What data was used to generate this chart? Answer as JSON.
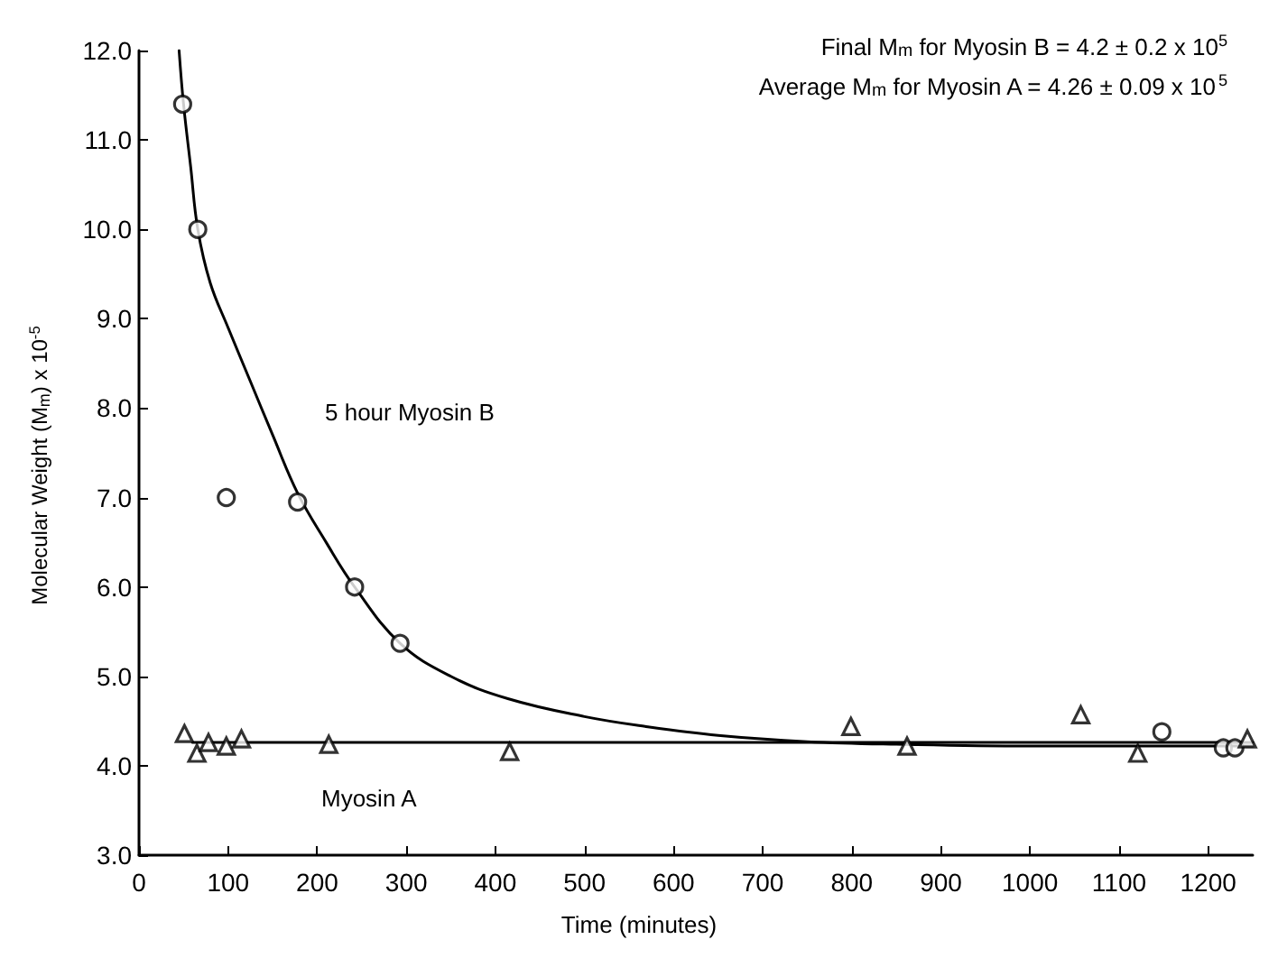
{
  "chart_data": {
    "type": "scatter",
    "xlabel": "Time (minutes)",
    "ylabel": "Molecular Weight (M$_{m}$) x 10$^{-5}$",
    "xlim": [
      0,
      1250
    ],
    "ylim": [
      3,
      12
    ],
    "xticks": [
      0,
      100,
      200,
      300,
      400,
      500,
      600,
      700,
      800,
      900,
      1000,
      1100,
      1200
    ],
    "yticks": [
      {
        "value": 3,
        "label": "3.0"
      },
      {
        "value": 4,
        "label": "4.0"
      },
      {
        "value": 5,
        "label": "5.0"
      },
      {
        "value": 6,
        "label": "6.0"
      },
      {
        "value": 7,
        "label": "7.0"
      },
      {
        "value": 8,
        "label": "8.0"
      },
      {
        "value": 9,
        "label": "9.0"
      },
      {
        "value": 10,
        "label": "10.0"
      },
      {
        "value": 11,
        "label": "11.0"
      },
      {
        "value": 12,
        "label": "12.0"
      }
    ],
    "grid": false,
    "series": [
      {
        "marker": "circle",
        "color": "#000000",
        "x": [
          49,
          66,
          98,
          178,
          242,
          293,
          1148,
          1217,
          1230
        ],
        "values": [
          11.4,
          10.0,
          7.0,
          6.95,
          6.0,
          5.37,
          4.38,
          4.2,
          4.2
        ]
      },
      {
        "marker": "triangle",
        "color": "#000000",
        "x": [
          51,
          65,
          78,
          98,
          115,
          213,
          416,
          799,
          862,
          1057,
          1121,
          1244
        ],
        "values": [
          4.36,
          4.14,
          4.26,
          4.22,
          4.3,
          4.24,
          4.16,
          4.44,
          4.22,
          4.57,
          4.14,
          4.3
        ]
      },
      {
        "type": "line",
        "marker": "none",
        "line_style": "solid",
        "color": "#000000",
        "x": [
          45,
          50,
          58,
          66,
          80,
          100,
          125,
          150,
          178,
          210,
          242,
          293,
          350,
          414,
          500,
          568,
          650,
          750,
          850,
          1000,
          1250
        ],
        "values": [
          12.0,
          11.4,
          10.7,
          10.0,
          9.4,
          8.9,
          8.3,
          7.7,
          7.05,
          6.5,
          6.0,
          5.37,
          5.0,
          4.75,
          4.55,
          4.44,
          4.34,
          4.27,
          4.24,
          4.22,
          4.22
        ]
      },
      {
        "type": "line",
        "marker": "none",
        "line_style": "solid",
        "color": "#000000",
        "x": [
          60,
          1250
        ],
        "values": [
          4.26,
          4.26
        ]
      }
    ],
    "annotations": [
      "5 hour Myosin B",
      "Myosin A",
      "Final M$_{m}$ for Myosin B = 4.2 ± 0.2 x 10$^{5}$",
      "Average M$_{m}$ for Myosin A = 4.26 ± 0.09 x 10$^{5}$"
    ]
  }
}
